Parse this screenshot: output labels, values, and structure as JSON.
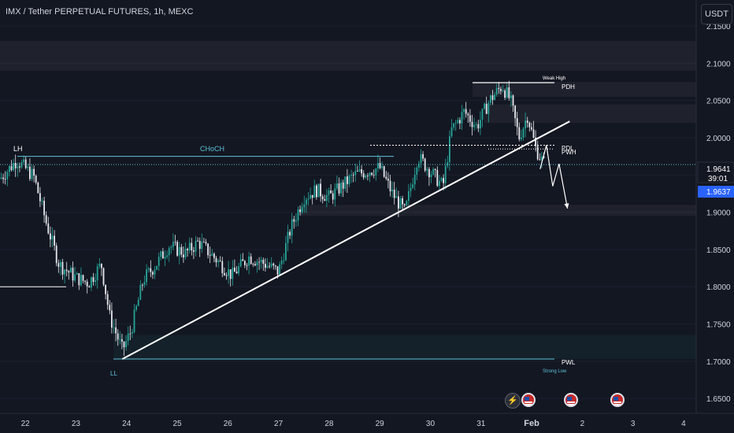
{
  "header": {
    "title": "IMX / Tether PERPETUAL FUTURES, 1h, MEXC",
    "currency_button": "USDT"
  },
  "price_scale": {
    "ticks": [
      "2.1500",
      "2.1000",
      "2.0500",
      "2.0000",
      "1.9500",
      "1.9000",
      "1.8500",
      "1.8000",
      "1.7500",
      "1.7000",
      "1.6500"
    ],
    "current_price": "1.9641",
    "countdown": "39:01",
    "last_price": "1.9637"
  },
  "time_axis": {
    "ticks": [
      "22",
      "23",
      "24",
      "25",
      "26",
      "27",
      "28",
      "29",
      "30",
      "31",
      "Feb",
      "2",
      "3",
      "4"
    ]
  },
  "annotations": {
    "lh": "LH",
    "choch": "CHoCH",
    "ll": "LL",
    "weak_high": "Weak High",
    "pdh": "PDH",
    "pdl": "PDL",
    "pwh": "PWH",
    "pwl": "PWL",
    "strong_low": "Strong Low"
  },
  "events": [
    {
      "icon": "lightning-icon",
      "glyph": "⚡"
    },
    {
      "icon": "us-flag-icon"
    },
    {
      "icon": "us-flag-icon"
    },
    {
      "icon": "us-flag-icon"
    }
  ],
  "colors": {
    "background": "#131722",
    "up": "#26a69a",
    "down": "#ef5350",
    "candle": "#e6e8ee",
    "level": "#5fc3d9",
    "accent": "#2962ff",
    "trendline": "#ffffff"
  },
  "chart_data": {
    "type": "candlestick",
    "symbol": "IMX/USDT",
    "interval": "1h",
    "x_range": [
      "2025-01-21T12:00",
      "2025-02-04T06:00"
    ],
    "y_range": [
      1.63,
      2.185
    ],
    "path": [
      [
        "2025-01-21T12:00",
        1.945
      ],
      [
        "2025-01-21T20:00",
        1.97
      ],
      [
        "2025-01-22T04:00",
        1.948
      ],
      [
        "2025-01-22T10:00",
        1.885
      ],
      [
        "2025-01-22T16:00",
        1.83
      ],
      [
        "2025-01-23T00:00",
        1.812
      ],
      [
        "2025-01-23T06:00",
        1.805
      ],
      [
        "2025-01-23T12:00",
        1.83
      ],
      [
        "2025-01-23T16:00",
        1.76
      ],
      [
        "2025-01-23T22:00",
        1.715
      ],
      [
        "2025-01-24T02:00",
        1.74
      ],
      [
        "2025-01-24T08:00",
        1.81
      ],
      [
        "2025-01-24T14:00",
        1.83
      ],
      [
        "2025-01-24T20:00",
        1.855
      ],
      [
        "2025-01-25T04:00",
        1.845
      ],
      [
        "2025-01-25T10:00",
        1.86
      ],
      [
        "2025-01-25T18:00",
        1.838
      ],
      [
        "2025-01-26T02:00",
        1.815
      ],
      [
        "2025-01-26T10:00",
        1.84
      ],
      [
        "2025-01-26T18:00",
        1.83
      ],
      [
        "2025-01-27T00:00",
        1.82
      ],
      [
        "2025-01-27T06:00",
        1.88
      ],
      [
        "2025-01-27T12:00",
        1.92
      ],
      [
        "2025-01-27T18:00",
        1.93
      ],
      [
        "2025-01-28T00:00",
        1.92
      ],
      [
        "2025-01-28T06:00",
        1.935
      ],
      [
        "2025-01-28T12:00",
        1.95
      ],
      [
        "2025-01-28T18:00",
        1.955
      ],
      [
        "2025-01-29T00:00",
        1.96
      ],
      [
        "2025-01-29T06:00",
        1.925
      ],
      [
        "2025-01-29T12:00",
        1.9
      ],
      [
        "2025-01-29T18:00",
        1.975
      ],
      [
        "2025-01-30T00:00",
        1.955
      ],
      [
        "2025-01-30T06:00",
        1.935
      ],
      [
        "2025-01-30T10:00",
        2.01
      ],
      [
        "2025-01-30T16:00",
        2.035
      ],
      [
        "2025-01-30T22:00",
        2.015
      ],
      [
        "2025-01-31T04:00",
        2.05
      ],
      [
        "2025-01-31T10:00",
        2.07
      ],
      [
        "2025-01-31T14:00",
        2.05
      ],
      [
        "2025-01-31T18:00",
        2.0
      ],
      [
        "2025-01-31T22:00",
        2.03
      ],
      [
        "2025-02-01T02:00",
        1.985
      ],
      [
        "2025-02-01T06:00",
        1.964
      ]
    ],
    "levels": [
      {
        "label": "LH",
        "y": 1.975
      },
      {
        "label": "CHoCH",
        "y": 1.975
      },
      {
        "label": "Weak High",
        "y": 2.074
      },
      {
        "label": "PDH",
        "y": 2.074
      },
      {
        "label": "PDL",
        "y": 1.99
      },
      {
        "label": "PWH",
        "y": 1.985
      },
      {
        "label": "LL",
        "y": 1.703
      },
      {
        "label": "PWL",
        "y": 1.703
      },
      {
        "label": "Strong Low",
        "y": 1.703
      },
      {
        "y": 1.8
      }
    ],
    "zones": [
      {
        "y": [
          2.09,
          2.13
        ]
      },
      {
        "y": [
          2.055,
          2.075
        ]
      },
      {
        "y": [
          2.02,
          2.045
        ]
      },
      {
        "y": [
          1.895,
          1.91
        ]
      },
      {
        "y": [
          1.703,
          1.735
        ]
      }
    ],
    "trendline": [
      [
        "2025-01-23T22:00",
        1.703
      ],
      [
        "2025-02-01T18:00",
        2.022
      ]
    ],
    "projection": [
      [
        "2025-02-01T04:00",
        1.958
      ],
      [
        "2025-02-01T07:00",
        1.99
      ],
      [
        "2025-02-01T10:00",
        1.935
      ],
      [
        "2025-02-01T13:00",
        1.965
      ],
      [
        "2025-02-01T17:00",
        1.905
      ]
    ],
    "current_price": 1.9641,
    "last_price": 1.9637
  }
}
